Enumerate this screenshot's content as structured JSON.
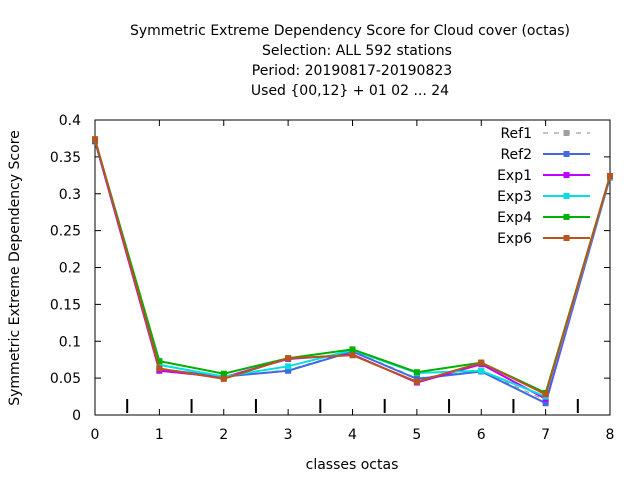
{
  "chart_data": {
    "type": "line",
    "title_lines": [
      "Symmetric Extreme Dependency Score  for Cloud cover (octas)",
      "Selection: ALL    592 stations",
      "Period: 20190817-20190823",
      "Used {00,12} + 01 02 ... 24"
    ],
    "xlabel": "classes octas",
    "ylabel": "Symmetric Extreme Dependency Score",
    "xlim": [
      0,
      8
    ],
    "ylim": [
      0,
      0.4
    ],
    "xticks": [
      "0",
      "1",
      "2",
      "3",
      "4",
      "5",
      "6",
      "7",
      "8"
    ],
    "yticks": [
      "0",
      "0.05",
      "0.1",
      "0.15",
      "0.2",
      "0.25",
      "0.3",
      "0.35",
      "0.4"
    ],
    "legend_position": "top-right",
    "grid": false,
    "x": [
      0,
      1,
      2,
      3,
      4,
      5,
      6,
      7,
      8
    ],
    "series": [
      {
        "name": "Ref1",
        "color": "#a0a0a0",
        "dashed": true,
        "values": [
          0.372,
          0.063,
          0.052,
          0.061,
          0.087,
          0.05,
          0.06,
          0.02,
          0.323
        ]
      },
      {
        "name": "Ref2",
        "color": "#4169e1",
        "dashed": false,
        "values": [
          0.371,
          0.062,
          0.052,
          0.06,
          0.086,
          0.049,
          0.059,
          0.016,
          0.322
        ]
      },
      {
        "name": "Exp1",
        "color": "#c000ff",
        "dashed": false,
        "values": [
          0.372,
          0.06,
          0.051,
          0.076,
          0.082,
          0.044,
          0.069,
          0.022,
          0.323
        ]
      },
      {
        "name": "Exp3",
        "color": "#00e0e0",
        "dashed": false,
        "values": [
          0.373,
          0.068,
          0.052,
          0.066,
          0.088,
          0.057,
          0.06,
          0.025,
          0.323
        ]
      },
      {
        "name": "Exp4",
        "color": "#00b000",
        "dashed": false,
        "values": [
          0.373,
          0.073,
          0.056,
          0.077,
          0.089,
          0.058,
          0.071,
          0.03,
          0.324
        ]
      },
      {
        "name": "Exp6",
        "color": "#b8541c",
        "dashed": false,
        "values": [
          0.374,
          0.063,
          0.049,
          0.077,
          0.081,
          0.045,
          0.071,
          0.028,
          0.324
        ]
      }
    ],
    "minor_tick_positions": [
      0.5,
      1.5,
      2.5,
      3.5,
      4.5,
      5.5,
      6.5,
      7.5
    ]
  }
}
